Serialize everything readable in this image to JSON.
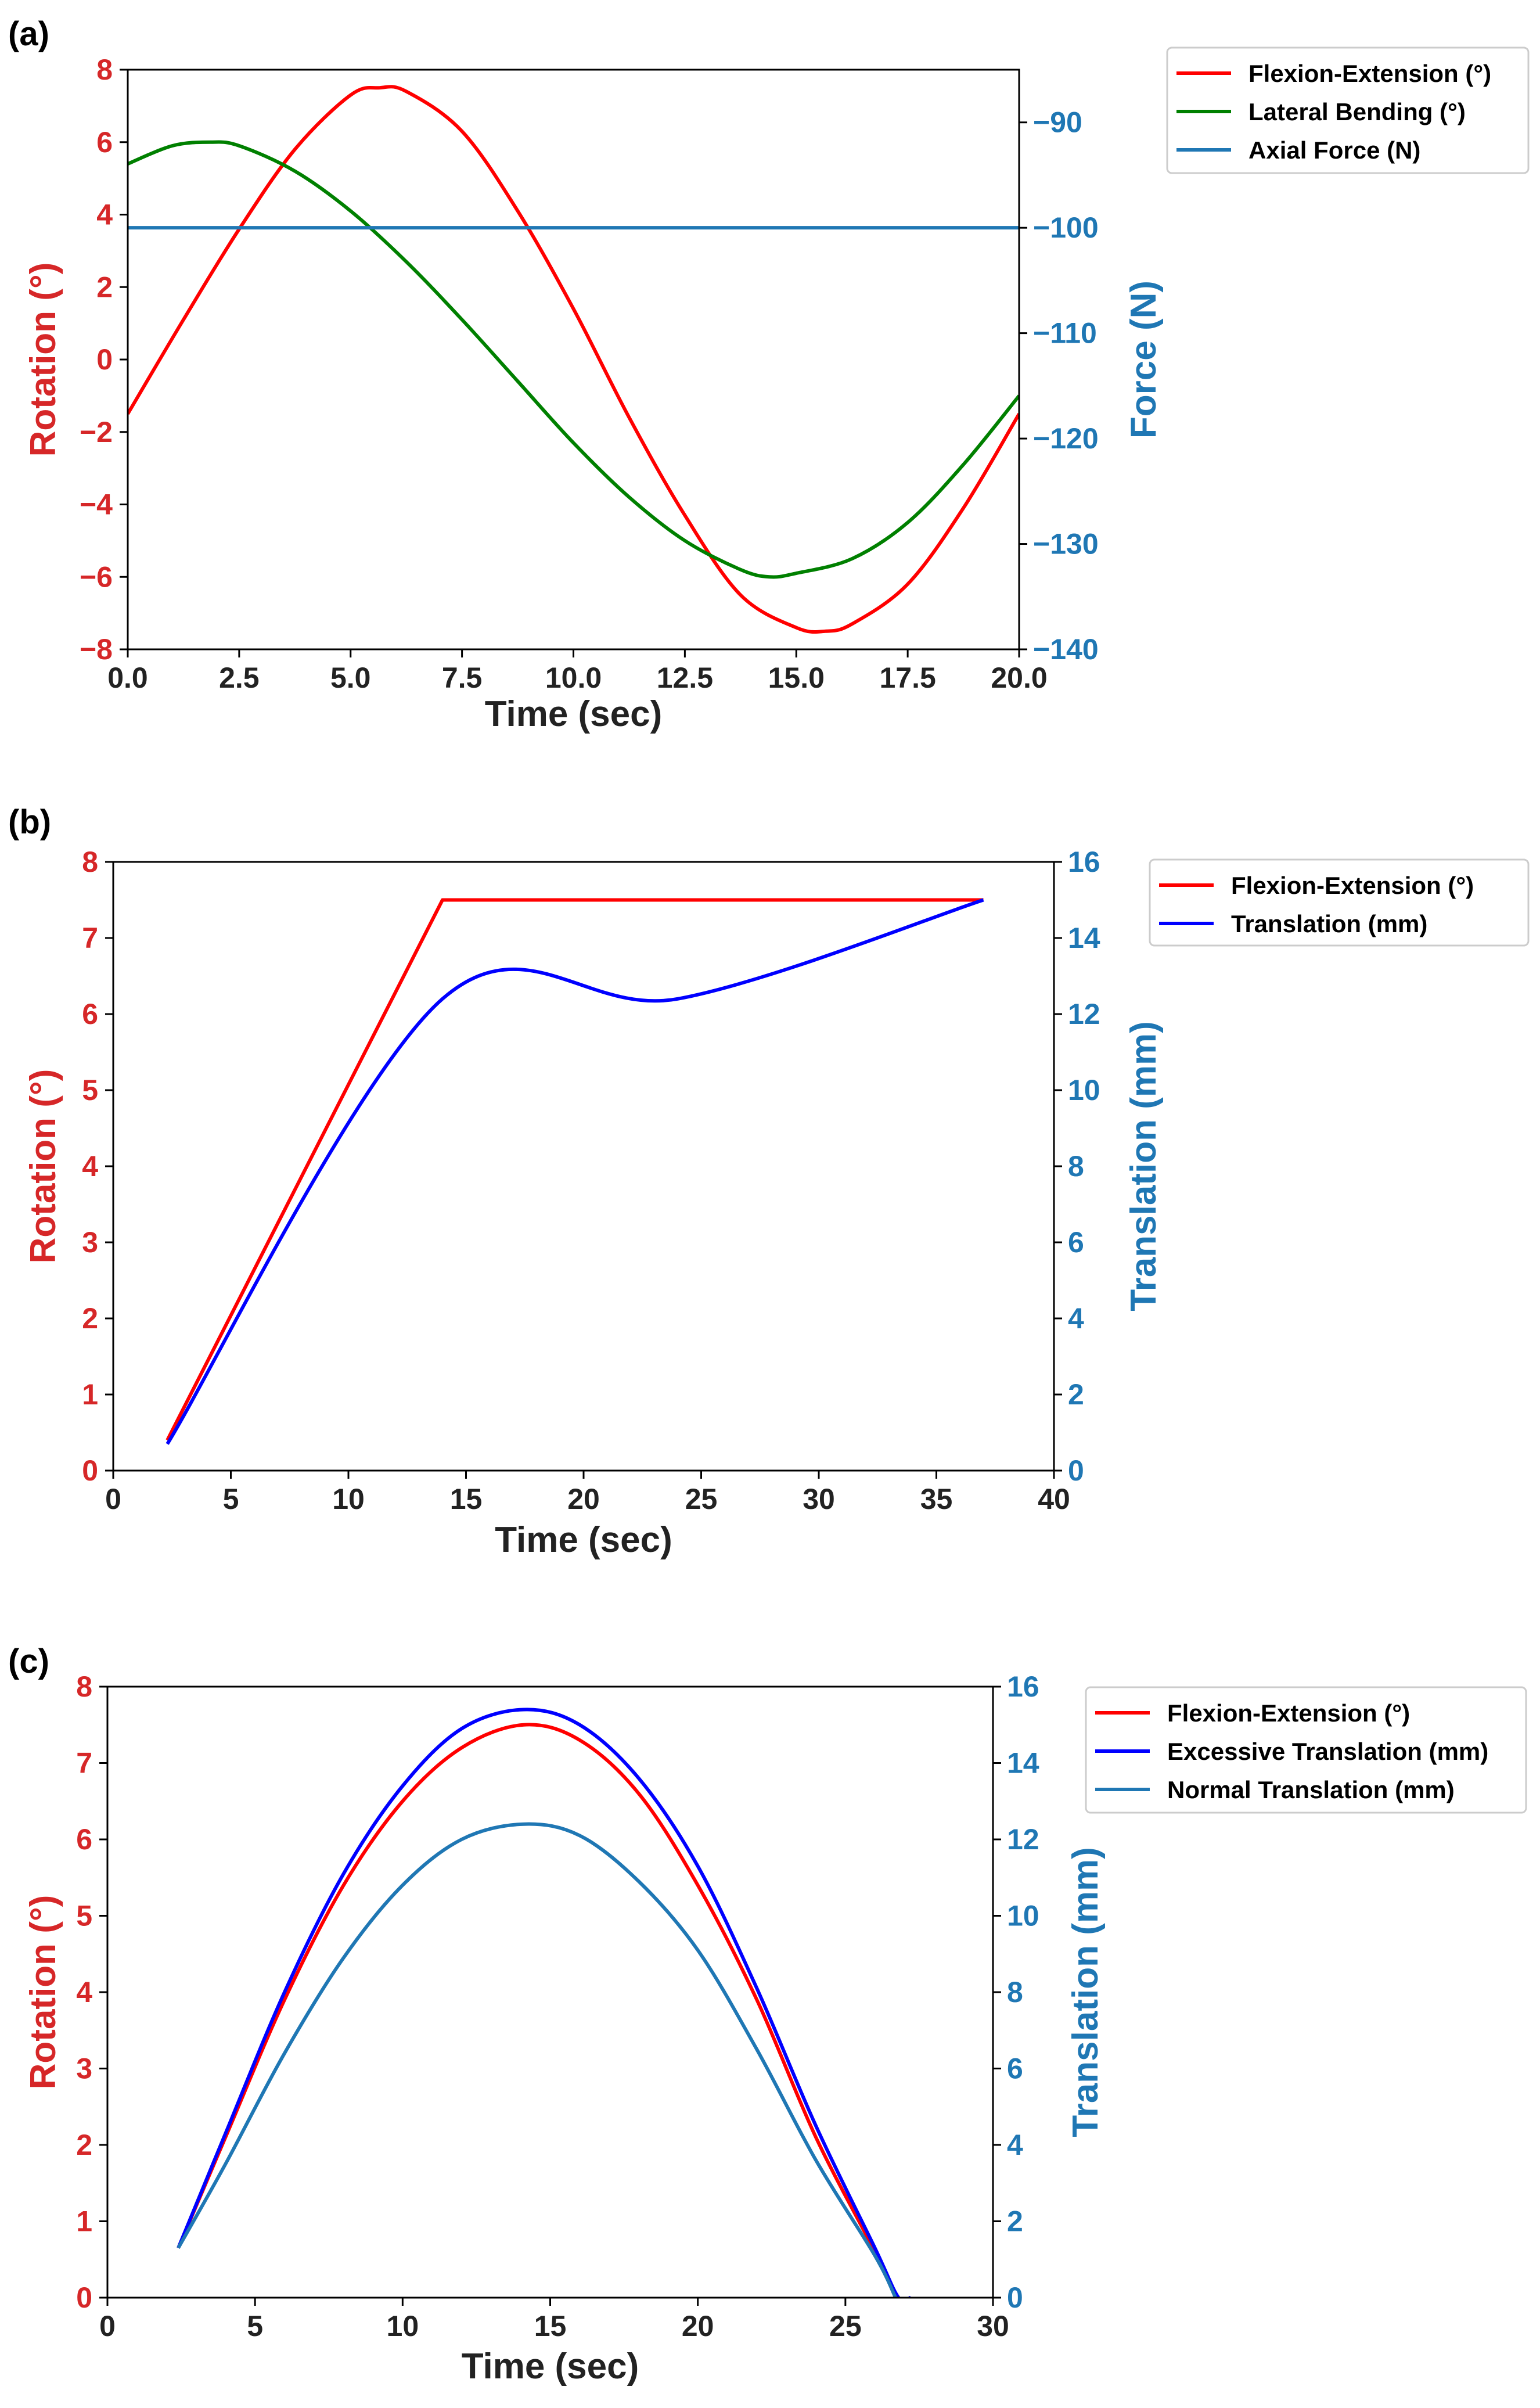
{
  "colors": {
    "rotation_axis": "#d62728",
    "secondary_axis": "#1f77b4",
    "red": "#ff0000",
    "green": "#008000",
    "blue": "#0000ff",
    "steel": "#1f77b4"
  },
  "chart_data": [
    {
      "panel_label": "(a)",
      "type": "line",
      "xlabel": "Time (sec)",
      "ylabel_left": "Rotation (°)",
      "ylabel_right": "Force (N)",
      "xlim": [
        0,
        20
      ],
      "ylim_left": [
        -8,
        8
      ],
      "ylim_right": [
        -140,
        -85
      ],
      "xticks": [
        "0.0",
        "2.5",
        "5.0",
        "7.5",
        "10.0",
        "12.5",
        "15.0",
        "17.5",
        "20.0"
      ],
      "yticks_left": [
        "8",
        "6",
        "4",
        "2",
        "0",
        "−2",
        "−4",
        "−6",
        "−8"
      ],
      "yticks_right": [
        "−90",
        "−100",
        "−110",
        "−120",
        "−130",
        "−140"
      ],
      "legend_position": "outside-top-right",
      "series": [
        {
          "name": "Flexion-Extension (°)",
          "color": "#ff0000",
          "axis": "left",
          "x": [
            0,
            1.25,
            2.5,
            3.75,
            5.0,
            5.65,
            6.25,
            7.5,
            8.75,
            10.0,
            11.25,
            12.5,
            13.75,
            15.0,
            15.65,
            16.25,
            17.5,
            18.75,
            20.0
          ],
          "y": [
            -1.5,
            1.1,
            3.6,
            5.8,
            7.3,
            7.5,
            7.4,
            6.3,
            4.1,
            1.4,
            -1.6,
            -4.3,
            -6.5,
            -7.4,
            -7.5,
            -7.3,
            -6.2,
            -4.1,
            -1.5
          ]
        },
        {
          "name": "Lateral Bending (°)",
          "color": "#008000",
          "axis": "left",
          "x": [
            0,
            1.0,
            1.85,
            2.5,
            3.75,
            5.0,
            6.25,
            7.5,
            8.75,
            10.0,
            11.25,
            12.5,
            13.75,
            14.4,
            15.0,
            16.25,
            17.5,
            18.75,
            20.0
          ],
          "y": [
            5.4,
            5.9,
            6.0,
            5.9,
            5.2,
            4.1,
            2.7,
            1.1,
            -0.6,
            -2.3,
            -3.8,
            -5.0,
            -5.8,
            -6.0,
            -5.9,
            -5.5,
            -4.5,
            -2.9,
            -1.0
          ]
        },
        {
          "name": "Axial Force (N)",
          "color": "#1f77b4",
          "axis": "right",
          "x": [
            0,
            20
          ],
          "y": [
            -100,
            -100
          ]
        }
      ]
    },
    {
      "panel_label": "(b)",
      "type": "line",
      "xlabel": "Time (sec)",
      "ylabel_left": "Rotation (°)",
      "ylabel_right": "Translation (mm)",
      "xlim": [
        0,
        40
      ],
      "ylim_left": [
        0,
        8
      ],
      "ylim_right": [
        0,
        16
      ],
      "xticks": [
        "0",
        "5",
        "10",
        "15",
        "20",
        "25",
        "30",
        "35",
        "40"
      ],
      "yticks_left": [
        "8",
        "7",
        "6",
        "5",
        "4",
        "3",
        "2",
        "1",
        "0"
      ],
      "yticks_right": [
        "16",
        "14",
        "12",
        "10",
        "8",
        "6",
        "4",
        "2",
        "0"
      ],
      "legend_position": "outside-top-right",
      "series": [
        {
          "name": "Flexion-Extension (°)",
          "color": "#ff0000",
          "axis": "left",
          "x": [
            2.3,
            14.0,
            37.0
          ],
          "y": [
            0.4,
            7.5,
            7.5
          ]
        },
        {
          "name": "Translation (mm)",
          "color": "#0000ff",
          "axis": "right",
          "x": [
            2.3,
            14.0,
            24.0,
            37.0
          ],
          "y": [
            0.7,
            12.4,
            12.4,
            15.0
          ]
        }
      ]
    },
    {
      "panel_label": "(c)",
      "type": "line",
      "xlabel": "Time (sec)",
      "ylabel_left": "Rotation (°)",
      "ylabel_right": "Translation (mm)",
      "xlim": [
        0,
        30
      ],
      "ylim_left": [
        0,
        8
      ],
      "ylim_right": [
        0,
        16
      ],
      "xticks": [
        "0",
        "5",
        "10",
        "15",
        "20",
        "25",
        "30"
      ],
      "yticks_left": [
        "8",
        "7",
        "6",
        "5",
        "4",
        "3",
        "2",
        "1",
        "0"
      ],
      "yticks_right": [
        "16",
        "14",
        "12",
        "10",
        "8",
        "6",
        "4",
        "2",
        "0"
      ],
      "legend_position": "outside-top-right",
      "series": [
        {
          "name": "Flexion-Extension (°)",
          "color": "#ff0000",
          "axis": "left",
          "x": [
            2.4,
            4,
            6,
            8,
            10,
            12,
            14.1,
            16,
            18,
            20,
            22,
            24,
            26,
            26.7
          ],
          "y": [
            0.65,
            2.1,
            3.9,
            5.4,
            6.5,
            7.2,
            7.5,
            7.3,
            6.6,
            5.4,
            3.9,
            2.1,
            0.6,
            0.0
          ]
        },
        {
          "name": "Excessive Translation (mm)",
          "color": "#0000ff",
          "axis": "right",
          "x": [
            2.4,
            4,
            6,
            8,
            10,
            12,
            14.1,
            16,
            18,
            20,
            22,
            24,
            26,
            26.8,
            27.2
          ],
          "y": [
            1.3,
            4.3,
            8.0,
            11.1,
            13.4,
            14.9,
            15.4,
            15.0,
            13.6,
            11.3,
            8.1,
            4.5,
            1.3,
            0.0,
            0.0
          ]
        },
        {
          "name": "Normal Translation (mm)",
          "color": "#1f77b4",
          "axis": "right",
          "x": [
            2.4,
            4,
            6,
            8,
            10,
            12,
            14.1,
            16,
            18,
            20,
            22,
            24,
            26,
            26.7
          ],
          "y": [
            1.3,
            3.5,
            6.4,
            8.9,
            10.8,
            12.0,
            12.4,
            12.1,
            10.9,
            9.1,
            6.5,
            3.6,
            1.1,
            0.0
          ]
        }
      ]
    }
  ]
}
